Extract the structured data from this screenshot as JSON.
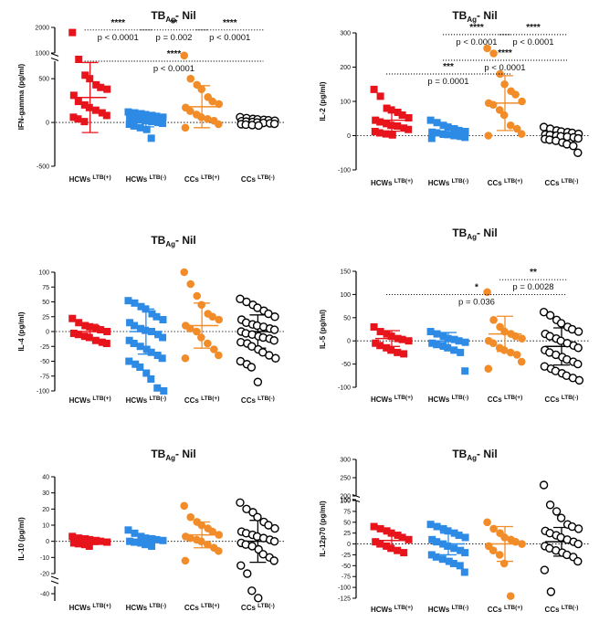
{
  "colors": {
    "hcw_pos": "#e8141c",
    "hcw_neg": "#2d8be6",
    "cc_pos": "#f28c28",
    "cc_neg": "#000000"
  },
  "marker_shapes": [
    "square",
    "square",
    "circle",
    "open-circle"
  ],
  "chart_data": [
    {
      "type": "scatter",
      "title": {
        "main": "TB",
        "sub": "Ag",
        "rest": "- Nil"
      },
      "ylabel": "IFN-gamma (pg/ml)",
      "categories": [
        {
          "main": "HCWs",
          "sup": "LTB(+)"
        },
        {
          "main": "HCWs",
          "sup": "LTB(-)"
        },
        {
          "main": "CCs",
          "sup": "LTB(+)"
        },
        {
          "main": "CCs",
          "sup": "LTB(-)"
        }
      ],
      "ylim": [
        -500,
        700
      ],
      "yticks": [
        -500,
        0,
        500
      ],
      "break": {
        "lower_max": 700,
        "upper_min": 1000,
        "upper_max": 2000,
        "upper_ticks": [
          1000,
          2000
        ]
      },
      "zero_line": true,
      "groups": [
        {
          "values": [
            1800,
            750,
            540,
            500,
            430,
            400,
            380,
            310,
            240,
            200,
            170,
            140,
            110,
            80,
            60,
            40,
            10
          ],
          "mean": 285,
          "sd": 400
        },
        {
          "values": [
            120,
            110,
            100,
            90,
            80,
            70,
            60,
            50,
            40,
            30,
            20,
            10,
            0,
            -10,
            -20,
            -40,
            -60,
            -80,
            -180
          ],
          "mean": 20,
          "sd": 70
        },
        {
          "values": [
            900,
            500,
            430,
            380,
            290,
            240,
            210,
            170,
            130,
            90,
            60,
            40,
            20,
            -20,
            -60
          ],
          "mean": 180,
          "sd": 240
        },
        {
          "values": [
            60,
            50,
            40,
            35,
            30,
            25,
            20,
            15,
            10,
            5,
            0,
            -5,
            -10,
            -15,
            -20,
            -25,
            -30,
            -35
          ],
          "mean": 10,
          "sd": 20
        }
      ],
      "comparisons": [
        {
          "from": 0,
          "to": 1,
          "stars": "****",
          "p": "p < 0.0001",
          "level": 1900
        },
        {
          "from": 1,
          "to": 2,
          "stars": "**",
          "p": "p = 0.002",
          "level": 1900
        },
        {
          "from": 2,
          "to": 3,
          "stars": "****",
          "p": "p < 0.0001",
          "level": 1900
        },
        {
          "from": 0,
          "to": 3,
          "stars": "****",
          "p": "p < 0.0001",
          "level": 700
        }
      ]
    },
    {
      "type": "scatter",
      "title": {
        "main": "TB",
        "sub": "Ag",
        "rest": "- Nil"
      },
      "ylabel": "IL-2 (pg/ml)",
      "categories": [
        {
          "main": "HCWs",
          "sup": "LTB(+)"
        },
        {
          "main": "HCWs",
          "sup": "LTB(-)"
        },
        {
          "main": "CCs",
          "sup": "LTB(+)"
        },
        {
          "main": "CCs",
          "sup": "LTB(-)"
        }
      ],
      "ylim": [
        -100,
        300
      ],
      "yticks": [
        -100,
        0,
        100,
        200,
        300
      ],
      "zero_line": true,
      "groups": [
        {
          "values": [
            135,
            115,
            80,
            75,
            68,
            60,
            52,
            45,
            40,
            35,
            30,
            28,
            22,
            18,
            12,
            8,
            5,
            2
          ],
          "mean": 45,
          "sd": 32
        },
        {
          "values": [
            45,
            38,
            30,
            25,
            20,
            15,
            12,
            10,
            8,
            5,
            3,
            0,
            -2,
            -5,
            -8
          ],
          "mean": 10,
          "sd": 15
        },
        {
          "values": [
            255,
            240,
            180,
            150,
            130,
            120,
            100,
            95,
            90,
            75,
            60,
            30,
            20,
            5,
            0
          ],
          "mean": 95,
          "sd": 80
        },
        {
          "values": [
            25,
            20,
            15,
            12,
            10,
            8,
            5,
            3,
            2,
            0,
            -2,
            -3,
            -5,
            -8,
            -10,
            -12,
            -15,
            -20,
            -25,
            -30,
            -50
          ],
          "mean": 0,
          "sd": 8
        }
      ],
      "comparisons": [
        {
          "from": 2,
          "to": 3,
          "stars": "****",
          "p": "p < 0.0001",
          "level": 295
        },
        {
          "from": 1,
          "to": 2,
          "stars": "****",
          "p": "p < 0.0001",
          "level": 295
        },
        {
          "from": 1,
          "to": 3,
          "stars": "****",
          "p": "p < 0.0001",
          "level": 220
        },
        {
          "from": 0,
          "to": 2,
          "stars": "***",
          "p": "p = 0.0001",
          "level": 180
        }
      ]
    },
    {
      "type": "scatter",
      "title": {
        "main": "TB",
        "sub": "Ag",
        "rest": "- Nil"
      },
      "ylabel": "IL-4 (pg/ml)",
      "categories": [
        {
          "main": "HCWs",
          "sup": "LTB(+)"
        },
        {
          "main": "HCWs",
          "sup": "LTB(-)"
        },
        {
          "main": "CCs",
          "sup": "LTB(+)"
        },
        {
          "main": "CCs",
          "sup": "LTB(-)"
        }
      ],
      "ylim": [
        -100,
        100
      ],
      "yticks": [
        -100,
        -75,
        -50,
        -25,
        0,
        25,
        50,
        75,
        100
      ],
      "zero_line": true,
      "groups": [
        {
          "values": [
            22,
            15,
            10,
            8,
            5,
            3,
            0,
            -3,
            -5,
            -8,
            -10,
            -15,
            -18,
            -20
          ],
          "mean": 0,
          "sd": 12
        },
        {
          "values": [
            52,
            48,
            42,
            38,
            30,
            25,
            20,
            15,
            10,
            5,
            2,
            0,
            -5,
            -10,
            -15,
            -20,
            -25,
            -30,
            -35,
            -40,
            -45,
            -50,
            -55,
            -60,
            -70,
            -80,
            -95,
            -100
          ],
          "mean": 0,
          "sd": 38
        },
        {
          "values": [
            100,
            80,
            60,
            45,
            30,
            25,
            20,
            10,
            5,
            0,
            -10,
            -20,
            -30,
            -40,
            -45
          ],
          "mean": 10,
          "sd": 38
        },
        {
          "values": [
            55,
            50,
            45,
            40,
            35,
            30,
            25,
            20,
            15,
            12,
            10,
            8,
            5,
            3,
            0,
            -3,
            -5,
            -8,
            -10,
            -12,
            -15,
            -18,
            -20,
            -25,
            -30,
            -35,
            -40,
            -45,
            -50,
            -55,
            -60,
            -85
          ],
          "mean": 0,
          "sd": 28
        }
      ],
      "comparisons": []
    },
    {
      "type": "scatter",
      "title": {
        "main": "TB",
        "sub": "Ag",
        "rest": "- Nil"
      },
      "ylabel": "IL-5 (pg/ml)",
      "categories": [
        {
          "main": "HCWs",
          "sup": "LTB(+)"
        },
        {
          "main": "HCWs",
          "sup": "LTB(-)"
        },
        {
          "main": "CCs",
          "sup": "LTB(+)"
        },
        {
          "main": "CCs",
          "sup": "LTB(-)"
        }
      ],
      "ylim": [
        -100,
        150
      ],
      "yticks": [
        -100,
        -50,
        0,
        50,
        100,
        150
      ],
      "zero_line": true,
      "groups": [
        {
          "values": [
            30,
            20,
            15,
            10,
            5,
            3,
            0,
            -5,
            -10,
            -15,
            -20,
            -25,
            -28
          ],
          "mean": 5,
          "sd": 17
        },
        {
          "values": [
            20,
            15,
            10,
            5,
            3,
            0,
            -3,
            -5,
            -8,
            -10,
            -15,
            -20,
            -25,
            -65
          ],
          "mean": 0,
          "sd": 18
        },
        {
          "values": [
            105,
            45,
            30,
            20,
            15,
            10,
            5,
            0,
            -5,
            -15,
            -20,
            -25,
            -30,
            -45,
            -60
          ],
          "mean": 15,
          "sd": 38
        },
        {
          "values": [
            62,
            55,
            45,
            38,
            30,
            25,
            20,
            15,
            10,
            5,
            0,
            -5,
            -10,
            -15,
            -20,
            -25,
            -30,
            -35,
            -40,
            -45,
            -50,
            -55,
            -60,
            -65,
            -70,
            -75,
            -80,
            -85
          ],
          "mean": -12,
          "sd": 40
        }
      ],
      "comparisons": [
        {
          "from": 2,
          "to": 3,
          "stars": "**",
          "p": "p = 0.0028",
          "level": 132
        },
        {
          "from": 0,
          "to": 3,
          "stars": "*",
          "p": "p = 0.036",
          "level": 100
        }
      ]
    },
    {
      "type": "scatter",
      "title": {
        "main": "TB",
        "sub": "Ag",
        "rest": "- Nil"
      },
      "ylabel": "IL-10 (pg/ml)",
      "categories": [
        {
          "main": "HCWs",
          "sup": "LTB(+)"
        },
        {
          "main": "HCWs",
          "sup": "LTB(-)"
        },
        {
          "main": "CCs",
          "sup": "LTB(+)"
        },
        {
          "main": "CCs",
          "sup": "LTB(-)"
        }
      ],
      "ylim": [
        -20,
        40
      ],
      "yticks": [
        -20,
        -10,
        0,
        10,
        20,
        30,
        40
      ],
      "break": {
        "lower_axis": [
          -45,
          -35
        ],
        "lower_ticks": [
          -40
        ]
      },
      "zero_line": true,
      "groups": [
        {
          "values": [
            3,
            2,
            1.5,
            1,
            0.5,
            0,
            -0.5,
            -1,
            -1.5,
            -2,
            -3
          ],
          "mean": 0,
          "sd": 2
        },
        {
          "values": [
            7,
            5,
            3,
            2,
            1.5,
            1,
            0.5,
            0,
            -0.5,
            -1,
            -2,
            -3
          ],
          "mean": 1,
          "sd": 2.5
        },
        {
          "values": [
            22,
            15,
            12,
            10,
            8,
            6,
            4,
            3,
            2,
            1,
            0,
            -2,
            -4,
            -6,
            -12
          ],
          "mean": 4,
          "sd": 8
        },
        {
          "values": [
            24,
            20,
            18,
            15,
            12,
            10,
            8,
            6,
            5,
            4,
            3,
            2,
            1,
            0,
            -1,
            -2,
            -3,
            -5,
            -8,
            -10,
            -12,
            -15,
            -20,
            -38,
            -43
          ],
          "mean": 0,
          "sd": 13
        }
      ],
      "comparisons": []
    },
    {
      "type": "scatter",
      "title": {
        "main": "TB",
        "sub": "Ag",
        "rest": "- Nil"
      },
      "ylabel": "IL-12p70 (pg/ml)",
      "categories": [
        {
          "main": "HCWs",
          "sup": "LTB(+)"
        },
        {
          "main": "HCWs",
          "sup": "LTB(-)"
        },
        {
          "main": "CCs",
          "sup": "LTB(+)"
        },
        {
          "main": "CCs",
          "sup": "LTB(-)"
        }
      ],
      "ylim": [
        -125,
        100
      ],
      "yticks": [
        -125,
        -100,
        -75,
        -50,
        -25,
        0,
        25,
        50,
        75,
        100
      ],
      "break": {
        "upper_min": 200,
        "upper_max": 300,
        "upper_ticks": [
          150,
          200,
          250,
          300
        ]
      },
      "zero_line": true,
      "groups": [
        {
          "values": [
            40,
            35,
            30,
            25,
            20,
            15,
            10,
            5,
            0,
            -5,
            -10,
            -15,
            -20
          ],
          "mean": 8,
          "sd": 17
        },
        {
          "values": [
            45,
            40,
            35,
            30,
            25,
            20,
            15,
            10,
            5,
            0,
            -5,
            -10,
            -15,
            -20,
            -25,
            -30,
            -35,
            -40,
            -45,
            -50,
            -65
          ],
          "mean": 0,
          "sd": 25
        },
        {
          "values": [
            50,
            35,
            25,
            15,
            10,
            5,
            0,
            -5,
            -15,
            -25,
            -45,
            -120
          ],
          "mean": 0,
          "sd": 40
        },
        {
          "values": [
            230,
            90,
            75,
            60,
            45,
            40,
            35,
            30,
            25,
            20,
            15,
            10,
            5,
            0,
            -5,
            -10,
            -15,
            -20,
            -25,
            -30,
            -40,
            -60,
            -110
          ],
          "mean": 5,
          "sd": 33
        }
      ],
      "comparisons": []
    }
  ]
}
